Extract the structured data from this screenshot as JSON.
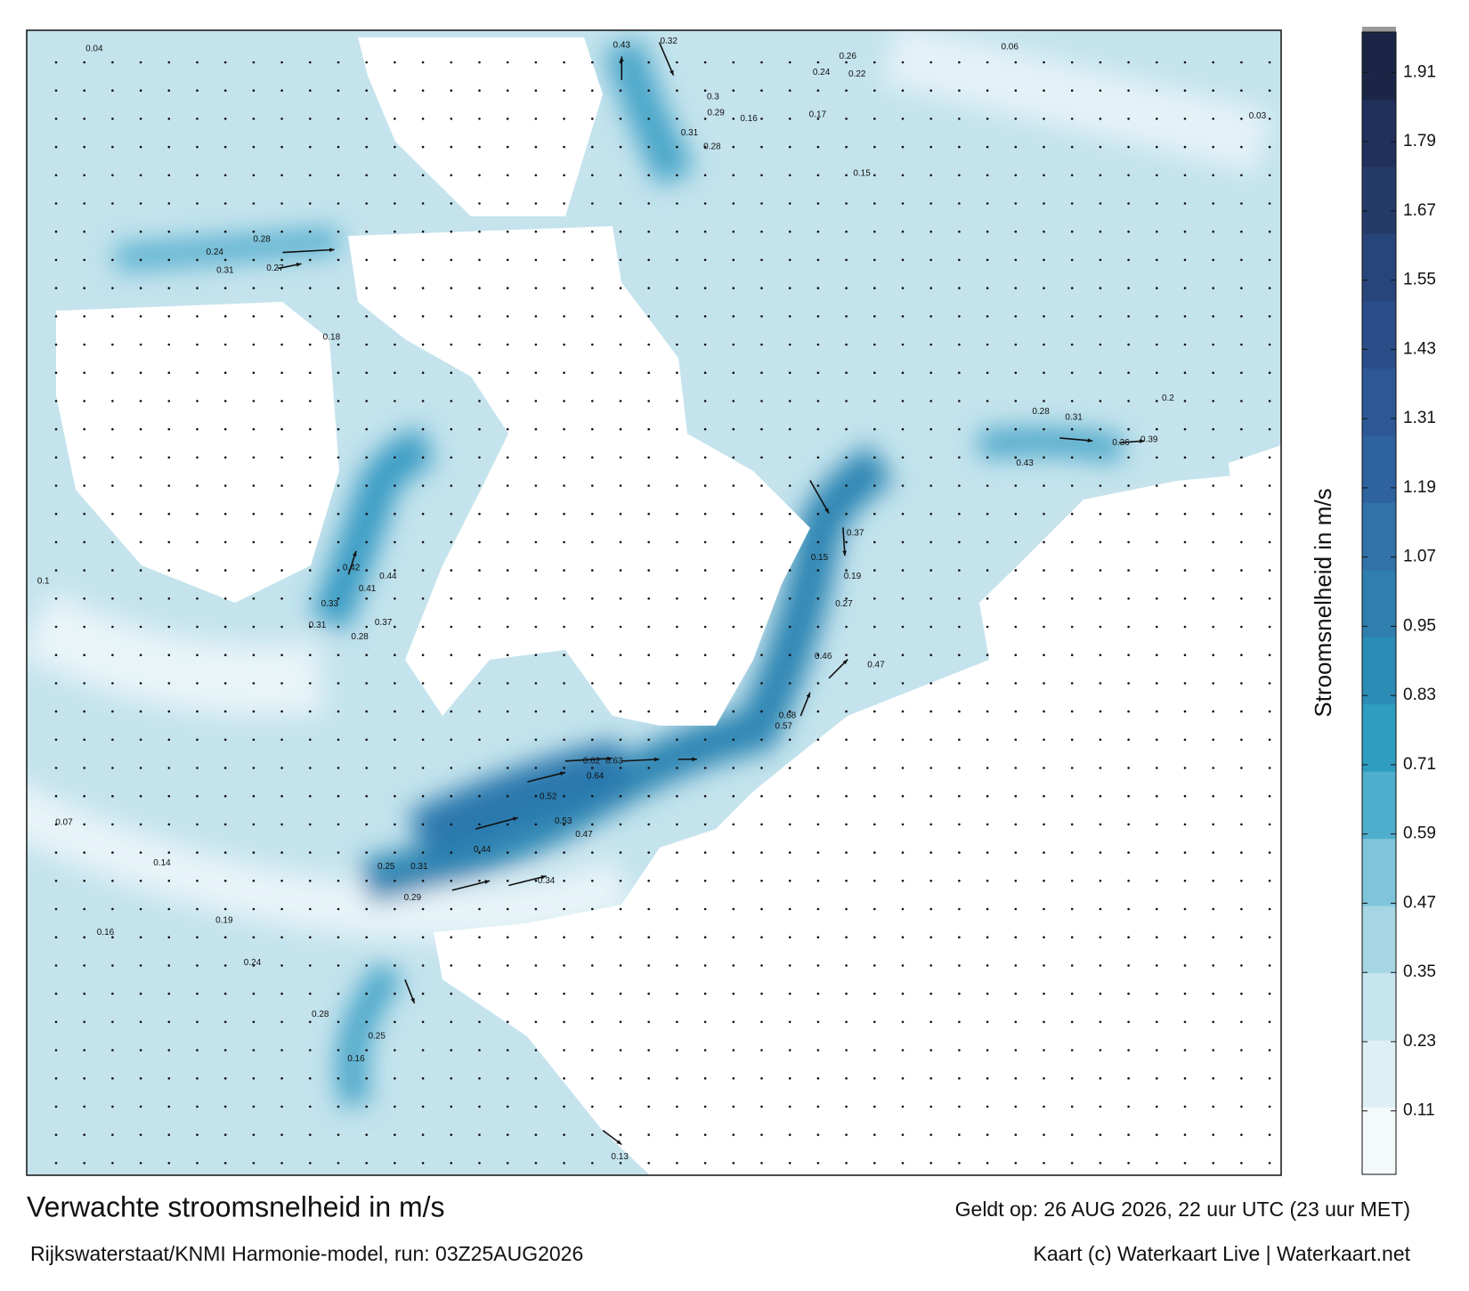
{
  "map": {
    "colorbar": {
      "label": "Stroomsnelheid in m/s",
      "lim": [
        0,
        1.98
      ],
      "ticks": [
        0.11,
        0.23,
        0.35,
        0.47,
        0.59,
        0.71,
        0.83,
        0.95,
        1.07,
        1.19,
        1.31,
        1.43,
        1.55,
        1.67,
        1.79,
        1.91
      ],
      "colors": [
        "#f4f9fb",
        "#dff0f5",
        "#c6e5ee",
        "#a6d6e4",
        "#7fc4d9",
        "#4eaecb",
        "#2e9dbf",
        "#2b8db5",
        "#2f7fae",
        "#3172a8",
        "#2f63a0",
        "#2c5895",
        "#2a4e88",
        "#27457a",
        "#243b6a",
        "#20305a",
        "#1b2646"
      ]
    },
    "speed_labels": [
      0.32,
      0.43,
      0.26,
      0.24,
      0.22,
      0.3,
      0.29,
      0.16,
      0.31,
      0.28,
      0.17,
      0.15,
      0.36,
      0.39,
      0.31,
      0.28,
      0.43,
      0.37,
      0.15,
      0.19,
      0.27,
      0.46,
      0.47,
      0.68,
      0.57,
      0.62,
      0.63,
      0.64,
      0.52,
      0.53,
      0.47,
      0.44,
      0.34,
      0.31,
      0.29,
      0.25,
      0.42,
      0.41,
      0.44,
      0.37,
      0.33,
      0.31,
      0.28,
      0.31,
      0.27,
      0.24,
      0.28,
      0.18,
      0.16,
      0.19,
      0.24,
      0.28,
      0.25,
      0.16,
      0.13,
      0.04,
      0.06,
      0.03,
      0.1,
      0.07,
      0.14,
      0.2
    ]
  },
  "footer": {
    "title": "Verwachte stroomsnelheid in m/s",
    "source": "Rijkswaterstaat/KNMI Harmonie-model, run: 03Z25AUG2026",
    "valid": "Geldt op: 26 AUG 2026, 22 uur UTC (23 uur MET)",
    "credit": "Kaart (c) Waterkaart Live | Waterkaart.net"
  }
}
